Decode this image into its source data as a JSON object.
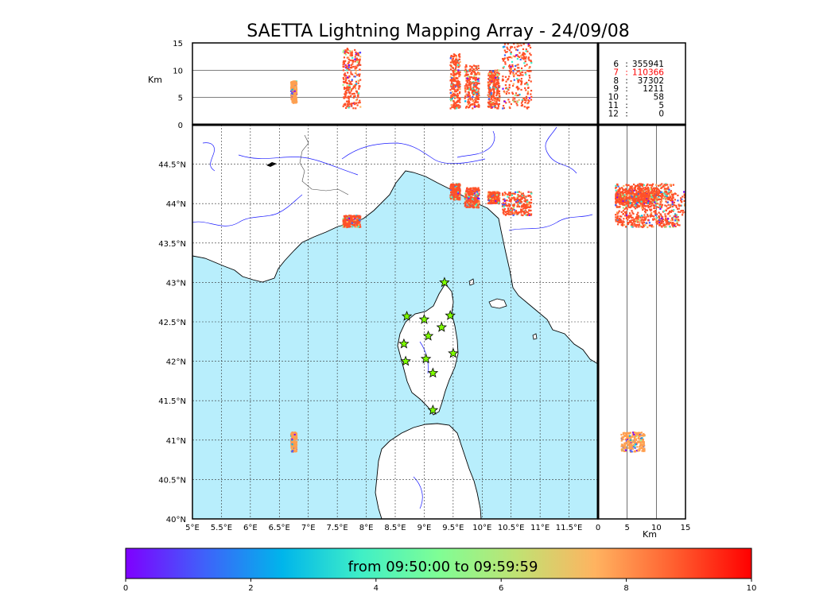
{
  "title": "SAETTA Lightning Mapping Array - 24/09/08",
  "colorbar": {
    "label": "from 09:50:00 to 09:59:59",
    "ticks": [
      "0",
      "2",
      "4",
      "6",
      "8",
      "10"
    ],
    "stops": [
      "#7f00ff",
      "#3f61fa",
      "#00b5eb",
      "#3fefc7",
      "#7ffe95",
      "#c0e273",
      "#ffb360",
      "#ff6030",
      "#ff0000"
    ]
  },
  "colors": {
    "sea": "#b8eefc",
    "land": "#ffffff",
    "river": "#1a1aff",
    "station": "#7fff00",
    "stat_highlight": "#ff0000",
    "sources_dominant": "#ff5028"
  },
  "stats": [
    {
      "n": "6",
      "count": "355941",
      "highlight": false
    },
    {
      "n": "7",
      "count": "110366",
      "highlight": true
    },
    {
      "n": "8",
      "count": "37302",
      "highlight": false
    },
    {
      "n": "9",
      "count": "1211",
      "highlight": false
    },
    {
      "n": "10",
      "count": "58",
      "highlight": false
    },
    {
      "n": "11",
      "count": "5",
      "highlight": false
    },
    {
      "n": "12",
      "count": "0",
      "highlight": false
    }
  ],
  "axes": {
    "alt_label": "Km",
    "right_km_label": "Km",
    "alt_ticks": [
      "0",
      "5",
      "10",
      "15"
    ],
    "right_km_ticks": [
      "0",
      "5",
      "10",
      "15"
    ],
    "lat_ticks": [
      "40°N",
      "40.5°N",
      "41°N",
      "41.5°N",
      "42°N",
      "42.5°N",
      "43°N",
      "43.5°N",
      "44°N",
      "44.5°N"
    ],
    "lon_ticks": [
      "5°E",
      "5.5°E",
      "6°E",
      "6.5°E",
      "7°E",
      "7.5°E",
      "8°E",
      "8.5°E",
      "9°E",
      "9.5°E",
      "10°E",
      "10.5°E",
      "11°E",
      "11.5°E"
    ]
  },
  "chart_data": {
    "type": "scatter",
    "title": "SAETTA Lightning Mapping Array - 24/09/08",
    "xlim": [
      5,
      12
    ],
    "ylim": [
      40,
      45
    ],
    "altitude_lim_km": [
      0,
      15
    ],
    "grid": true,
    "colorbar_range": [
      0,
      10
    ],
    "colorbar_label": "from 09:50:00 to 09:59:59",
    "stations": [
      {
        "lon": 9.35,
        "lat": 43.0
      },
      {
        "lon": 8.7,
        "lat": 42.57
      },
      {
        "lon": 9.0,
        "lat": 42.53
      },
      {
        "lon": 9.45,
        "lat": 42.58
      },
      {
        "lon": 9.3,
        "lat": 42.43
      },
      {
        "lon": 9.07,
        "lat": 42.32
      },
      {
        "lon": 8.65,
        "lat": 42.22
      },
      {
        "lon": 9.5,
        "lat": 42.1
      },
      {
        "lon": 8.68,
        "lat": 42.0
      },
      {
        "lon": 9.03,
        "lat": 42.03
      },
      {
        "lon": 9.15,
        "lat": 41.85
      },
      {
        "lon": 9.15,
        "lat": 41.38
      }
    ],
    "source_clusters": [
      {
        "lon_range": [
          7.6,
          7.9
        ],
        "lat_range": [
          43.7,
          43.85
        ],
        "alt_range": [
          3,
          14
        ],
        "color": "#ff5028"
      },
      {
        "lon_range": [
          9.45,
          9.62
        ],
        "lat_range": [
          44.05,
          44.25
        ],
        "alt_range": [
          3,
          13
        ],
        "color": "#ff5028"
      },
      {
        "lon_range": [
          9.7,
          9.95
        ],
        "lat_range": [
          43.95,
          44.2
        ],
        "alt_range": [
          3,
          11
        ],
        "color": "#ff5028"
      },
      {
        "lon_range": [
          10.1,
          10.3
        ],
        "lat_range": [
          44.0,
          44.15
        ],
        "alt_range": [
          3,
          10
        ],
        "color": "#ff5028"
      },
      {
        "lon_range": [
          10.35,
          10.85
        ],
        "lat_range": [
          43.85,
          44.15
        ],
        "alt_range": [
          3,
          15
        ],
        "color": "#ff5028"
      },
      {
        "lon_range": [
          6.7,
          6.8
        ],
        "lat_range": [
          40.85,
          41.1
        ],
        "alt_range": [
          4,
          8
        ],
        "color": "#ff9f50"
      }
    ]
  }
}
